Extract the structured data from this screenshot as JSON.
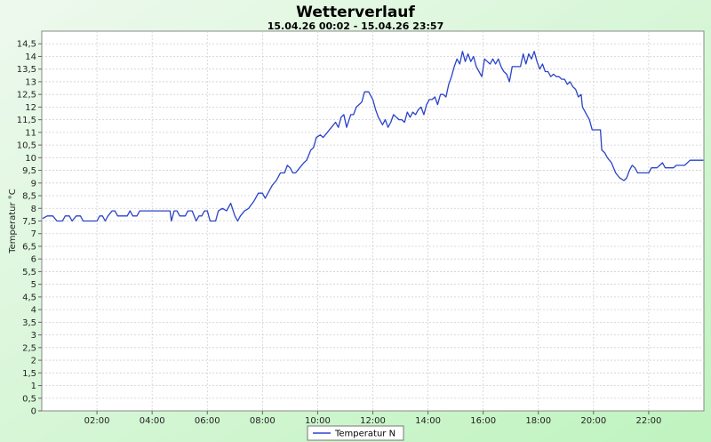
{
  "chart_data": {
    "type": "line",
    "title": "Wetterverlauf",
    "subtitle": "15.04.26 00:02 - 15.04.26 23:57",
    "ylabel": "Temperatur °C",
    "xlabel": "",
    "ylim": [
      0,
      15
    ],
    "xlim": [
      0,
      24
    ],
    "y_ticks": [
      "0",
      "0,5",
      "1",
      "1,5",
      "2",
      "2,5",
      "3",
      "3,5",
      "4",
      "4,5",
      "5",
      "5,5",
      "6",
      "6,5",
      "7",
      "7,5",
      "8",
      "8,5",
      "9",
      "9,5",
      "10",
      "10,5",
      "11",
      "11,5",
      "12",
      "12,5",
      "13",
      "13,5",
      "14",
      "14,5"
    ],
    "x_ticks": [
      "02:00",
      "04:00",
      "06:00",
      "08:00",
      "10:00",
      "12:00",
      "14:00",
      "16:00",
      "18:00",
      "20:00",
      "22:00"
    ],
    "grid": true,
    "legend_position": "bottom-center",
    "series": [
      {
        "name": "Temperatur N",
        "color": "#2a43c8",
        "points": [
          [
            0.03,
            7.6
          ],
          [
            0.2,
            7.7
          ],
          [
            0.4,
            7.7
          ],
          [
            0.55,
            7.5
          ],
          [
            0.75,
            7.5
          ],
          [
            0.85,
            7.7
          ],
          [
            1.0,
            7.7
          ],
          [
            1.1,
            7.5
          ],
          [
            1.25,
            7.7
          ],
          [
            1.4,
            7.7
          ],
          [
            1.5,
            7.5
          ],
          [
            1.75,
            7.5
          ],
          [
            1.9,
            7.5
          ],
          [
            2.0,
            7.5
          ],
          [
            2.1,
            7.7
          ],
          [
            2.2,
            7.7
          ],
          [
            2.3,
            7.5
          ],
          [
            2.4,
            7.7
          ],
          [
            2.55,
            7.9
          ],
          [
            2.65,
            7.9
          ],
          [
            2.75,
            7.7
          ],
          [
            3.0,
            7.7
          ],
          [
            3.1,
            7.7
          ],
          [
            3.2,
            7.9
          ],
          [
            3.3,
            7.7
          ],
          [
            3.45,
            7.7
          ],
          [
            3.55,
            7.9
          ],
          [
            4.0,
            7.9
          ],
          [
            4.5,
            7.9
          ],
          [
            4.65,
            7.9
          ],
          [
            4.7,
            7.5
          ],
          [
            4.8,
            7.9
          ],
          [
            4.9,
            7.9
          ],
          [
            5.0,
            7.7
          ],
          [
            5.2,
            7.7
          ],
          [
            5.3,
            7.9
          ],
          [
            5.45,
            7.9
          ],
          [
            5.6,
            7.5
          ],
          [
            5.7,
            7.7
          ],
          [
            5.8,
            7.7
          ],
          [
            5.9,
            7.9
          ],
          [
            6.0,
            7.9
          ],
          [
            6.1,
            7.5
          ],
          [
            6.3,
            7.5
          ],
          [
            6.4,
            7.9
          ],
          [
            6.55,
            8.0
          ],
          [
            6.7,
            7.9
          ],
          [
            6.85,
            8.2
          ],
          [
            7.0,
            7.7
          ],
          [
            7.1,
            7.5
          ],
          [
            7.2,
            7.7
          ],
          [
            7.35,
            7.9
          ],
          [
            7.5,
            8.0
          ],
          [
            7.7,
            8.3
          ],
          [
            7.85,
            8.6
          ],
          [
            8.0,
            8.6
          ],
          [
            8.1,
            8.4
          ],
          [
            8.2,
            8.6
          ],
          [
            8.35,
            8.9
          ],
          [
            8.5,
            9.1
          ],
          [
            8.65,
            9.4
          ],
          [
            8.8,
            9.4
          ],
          [
            8.9,
            9.7
          ],
          [
            9.0,
            9.6
          ],
          [
            9.1,
            9.4
          ],
          [
            9.2,
            9.4
          ],
          [
            9.35,
            9.6
          ],
          [
            9.5,
            9.8
          ],
          [
            9.6,
            9.9
          ],
          [
            9.75,
            10.3
          ],
          [
            9.85,
            10.4
          ],
          [
            9.95,
            10.8
          ],
          [
            10.1,
            10.9
          ],
          [
            10.2,
            10.8
          ],
          [
            10.35,
            11.0
          ],
          [
            10.5,
            11.2
          ],
          [
            10.65,
            11.4
          ],
          [
            10.75,
            11.2
          ],
          [
            10.85,
            11.6
          ],
          [
            10.95,
            11.7
          ],
          [
            11.05,
            11.2
          ],
          [
            11.2,
            11.7
          ],
          [
            11.3,
            11.7
          ],
          [
            11.4,
            12.0
          ],
          [
            11.5,
            12.1
          ],
          [
            11.6,
            12.2
          ],
          [
            11.7,
            12.6
          ],
          [
            11.85,
            12.6
          ],
          [
            12.0,
            12.3
          ],
          [
            12.1,
            11.9
          ],
          [
            12.2,
            11.6
          ],
          [
            12.35,
            11.3
          ],
          [
            12.45,
            11.5
          ],
          [
            12.55,
            11.2
          ],
          [
            12.65,
            11.4
          ],
          [
            12.75,
            11.7
          ],
          [
            12.85,
            11.6
          ],
          [
            12.95,
            11.5
          ],
          [
            13.05,
            11.5
          ],
          [
            13.15,
            11.4
          ],
          [
            13.25,
            11.8
          ],
          [
            13.35,
            11.6
          ],
          [
            13.45,
            11.8
          ],
          [
            13.55,
            11.7
          ],
          [
            13.65,
            11.9
          ],
          [
            13.75,
            12.0
          ],
          [
            13.85,
            11.7
          ],
          [
            13.95,
            12.1
          ],
          [
            14.05,
            12.3
          ],
          [
            14.15,
            12.3
          ],
          [
            14.25,
            12.4
          ],
          [
            14.35,
            12.1
          ],
          [
            14.45,
            12.5
          ],
          [
            14.55,
            12.5
          ],
          [
            14.65,
            12.4
          ],
          [
            14.75,
            12.9
          ],
          [
            14.85,
            13.2
          ],
          [
            14.95,
            13.6
          ],
          [
            15.05,
            13.9
          ],
          [
            15.15,
            13.7
          ],
          [
            15.25,
            14.2
          ],
          [
            15.35,
            13.8
          ],
          [
            15.45,
            14.1
          ],
          [
            15.55,
            13.8
          ],
          [
            15.65,
            14.0
          ],
          [
            15.75,
            13.6
          ],
          [
            15.85,
            13.4
          ],
          [
            15.95,
            13.2
          ],
          [
            16.05,
            13.9
          ],
          [
            16.15,
            13.8
          ],
          [
            16.25,
            13.7
          ],
          [
            16.35,
            13.9
          ],
          [
            16.45,
            13.7
          ],
          [
            16.55,
            13.9
          ],
          [
            16.65,
            13.6
          ],
          [
            16.75,
            13.4
          ],
          [
            16.85,
            13.3
          ],
          [
            16.95,
            13.0
          ],
          [
            17.05,
            13.6
          ],
          [
            17.15,
            13.6
          ],
          [
            17.25,
            13.6
          ],
          [
            17.35,
            13.6
          ],
          [
            17.45,
            14.1
          ],
          [
            17.55,
            13.7
          ],
          [
            17.65,
            14.1
          ],
          [
            17.75,
            13.9
          ],
          [
            17.85,
            14.2
          ],
          [
            17.95,
            13.8
          ],
          [
            18.05,
            13.5
          ],
          [
            18.15,
            13.7
          ],
          [
            18.25,
            13.4
          ],
          [
            18.35,
            13.4
          ],
          [
            18.45,
            13.2
          ],
          [
            18.55,
            13.3
          ],
          [
            18.65,
            13.2
          ],
          [
            18.75,
            13.2
          ],
          [
            18.85,
            13.1
          ],
          [
            18.95,
            13.1
          ],
          [
            19.05,
            12.9
          ],
          [
            19.15,
            13.0
          ],
          [
            19.25,
            12.8
          ],
          [
            19.35,
            12.7
          ],
          [
            19.45,
            12.4
          ],
          [
            19.55,
            12.5
          ],
          [
            19.6,
            12.0
          ],
          [
            19.75,
            11.7
          ],
          [
            19.85,
            11.5
          ],
          [
            19.95,
            11.1
          ],
          [
            20.1,
            11.1
          ],
          [
            20.25,
            11.1
          ],
          [
            20.3,
            10.3
          ],
          [
            20.4,
            10.2
          ],
          [
            20.5,
            10.0
          ],
          [
            20.65,
            9.8
          ],
          [
            20.8,
            9.4
          ],
          [
            20.95,
            9.2
          ],
          [
            21.1,
            9.1
          ],
          [
            21.2,
            9.2
          ],
          [
            21.3,
            9.5
          ],
          [
            21.4,
            9.7
          ],
          [
            21.5,
            9.6
          ],
          [
            21.6,
            9.4
          ],
          [
            21.7,
            9.4
          ],
          [
            21.8,
            9.4
          ],
          [
            22.0,
            9.4
          ],
          [
            22.1,
            9.6
          ],
          [
            22.2,
            9.6
          ],
          [
            22.3,
            9.6
          ],
          [
            22.4,
            9.7
          ],
          [
            22.5,
            9.8
          ],
          [
            22.6,
            9.6
          ],
          [
            22.7,
            9.6
          ],
          [
            22.8,
            9.6
          ],
          [
            22.9,
            9.6
          ],
          [
            23.0,
            9.7
          ],
          [
            23.1,
            9.7
          ],
          [
            23.2,
            9.7
          ],
          [
            23.3,
            9.7
          ],
          [
            23.5,
            9.9
          ],
          [
            23.7,
            9.9
          ],
          [
            23.9,
            9.9
          ],
          [
            23.98,
            9.9
          ]
        ]
      }
    ]
  }
}
